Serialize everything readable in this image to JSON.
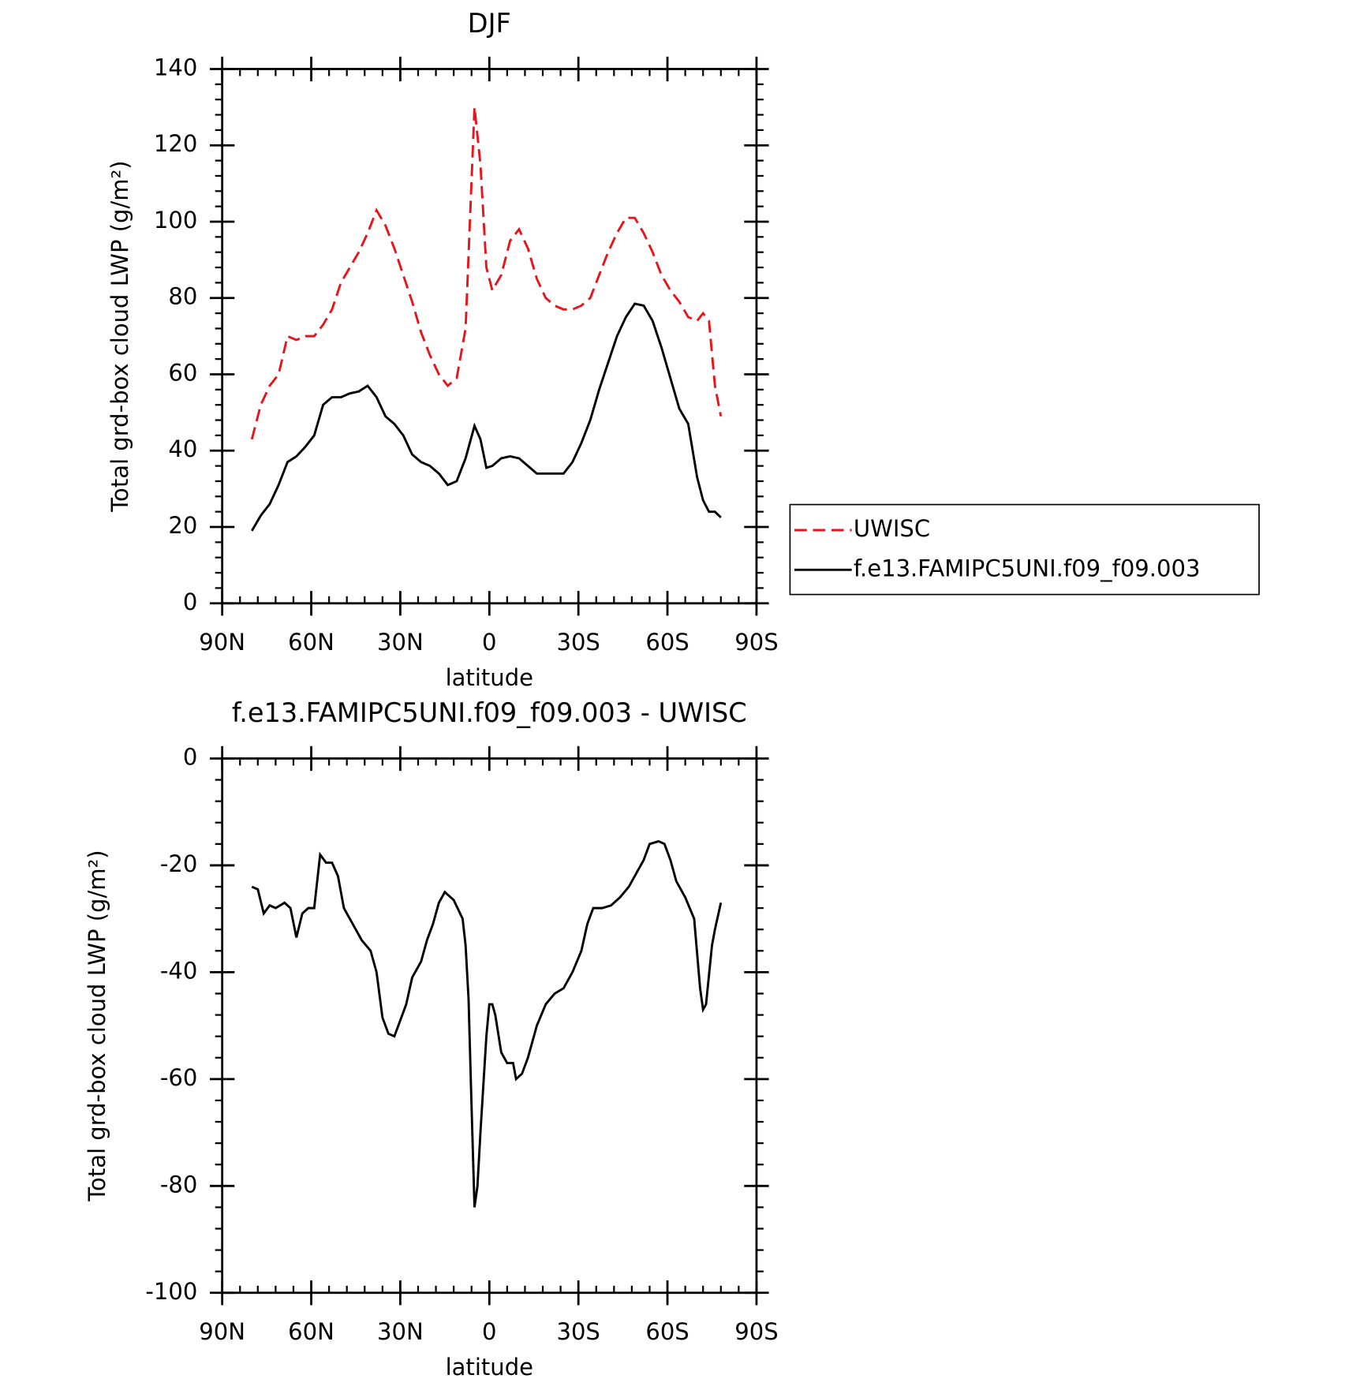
{
  "chart_data": [
    {
      "type": "line",
      "title": "DJF",
      "ylabel": "Total grd-box cloud LWP (g/m²)",
      "xlabel": "latitude",
      "xlim": [
        90,
        -90
      ],
      "xticks": [
        {
          "value": 90,
          "label": "90N"
        },
        {
          "value": 60,
          "label": "60N"
        },
        {
          "value": 30,
          "label": "30N"
        },
        0,
        {
          "value": -30,
          "label": "30S"
        },
        {
          "value": -60,
          "label": "60S"
        },
        {
          "value": -90,
          "label": "90S"
        }
      ],
      "ylim": [
        0,
        140
      ],
      "yticks": [
        0,
        20,
        40,
        60,
        80,
        100,
        120,
        140
      ],
      "legend": "right",
      "x": [
        80,
        77,
        74,
        71,
        68,
        65,
        62,
        59,
        56,
        53,
        50,
        47,
        44,
        41,
        38,
        35,
        32,
        29,
        26,
        23,
        20,
        17,
        14,
        11,
        8,
        5,
        3,
        1,
        -1,
        -4,
        -7,
        -10,
        -13,
        -16,
        -19,
        -22,
        -25,
        -28,
        -31,
        -34,
        -37,
        -40,
        -43,
        -46,
        -49,
        -52,
        -55,
        -58,
        -61,
        -64,
        -67,
        -70,
        -72,
        -74,
        -76,
        -78
      ],
      "series": [
        {
          "name": "UWISC",
          "color": "#e8141b",
          "line_style": "dashed",
          "values": [
            43,
            52,
            57,
            60,
            70,
            69,
            70,
            70,
            73,
            77,
            84,
            88,
            92,
            97,
            103,
            99,
            93,
            86,
            79,
            71,
            65,
            60,
            57,
            59,
            72,
            130,
            115,
            88,
            82,
            86,
            95,
            98,
            93,
            85,
            80,
            78,
            77,
            77,
            78,
            80,
            86,
            92,
            97,
            101,
            101,
            97,
            92,
            86,
            82,
            79,
            75,
            74,
            76,
            74,
            57,
            49
          ]
        },
        {
          "name": "f.e13.FAMIPC5UNI.f09_f09.003",
          "color": "#000000",
          "line_style": "solid",
          "values": [
            19,
            23,
            26,
            31,
            37,
            38.5,
            41,
            44,
            52,
            54,
            54,
            55,
            55.5,
            57,
            54,
            49,
            47,
            44,
            39,
            37,
            36,
            34,
            31,
            32,
            38,
            46.5,
            43,
            35.5,
            36,
            38,
            38.5,
            38,
            36,
            34,
            34,
            34,
            34,
            37,
            42,
            48,
            56,
            63,
            70,
            75,
            78.5,
            78,
            74,
            67,
            59,
            51,
            47,
            33,
            27,
            24,
            24,
            22.5
          ]
        }
      ]
    },
    {
      "type": "line",
      "title": "f.e13.FAMIPC5UNI.f09_f09.003 - UWISC",
      "ylabel": "Total grd-box cloud LWP (g/m²)",
      "xlabel": "latitude",
      "xlim": [
        90,
        -90
      ],
      "xticks": [
        {
          "value": 90,
          "label": "90N"
        },
        {
          "value": 60,
          "label": "60N"
        },
        {
          "value": 30,
          "label": "30N"
        },
        0,
        {
          "value": -30,
          "label": "30S"
        },
        {
          "value": -60,
          "label": "60S"
        },
        {
          "value": -90,
          "label": "90S"
        }
      ],
      "ylim": [
        -100,
        0
      ],
      "yticks": [
        -100,
        -80,
        -60,
        -40,
        -20,
        0
      ],
      "color": "#000000",
      "line_style": "solid",
      "x": [
        80,
        78,
        76,
        74,
        72,
        69,
        67,
        65,
        63,
        61,
        59,
        57,
        55,
        53,
        51,
        49,
        46,
        43,
        40,
        38,
        36,
        34,
        32,
        30,
        28,
        26,
        23,
        21,
        19,
        17,
        15,
        13,
        12,
        9,
        8,
        7,
        6,
        5,
        4,
        3,
        1,
        0,
        -1,
        -2,
        -4,
        -6,
        -8,
        -9,
        -11,
        -13,
        -16,
        -19,
        -22,
        -25,
        -28,
        -31,
        -33,
        -35,
        -38,
        -41,
        -44,
        -47,
        -50,
        -52,
        -54,
        -57,
        -59,
        -61,
        -63,
        -66,
        -69,
        -71,
        -72,
        -73,
        -75,
        -76,
        -78
      ],
      "values": [
        -24,
        -24.5,
        -29,
        -27.5,
        -28,
        -27,
        -28,
        -33.5,
        -29,
        -28,
        -28,
        -18,
        -19.5,
        -19.5,
        -22,
        -28,
        -31,
        -34,
        -36,
        -40,
        -48.5,
        -51.5,
        -52,
        -49,
        -46,
        -41,
        -38,
        -34,
        -31,
        -27,
        -25,
        -26,
        -26.5,
        -30,
        -35,
        -45,
        -65,
        -84,
        -80,
        -70,
        -52,
        -46,
        -46,
        -48,
        -55,
        -57,
        -57,
        -60,
        -59,
        -56,
        -50,
        -46,
        -44,
        -43,
        -40,
        -36,
        -31,
        -28,
        -28,
        -27.5,
        -26,
        -24,
        -21,
        -19,
        -16,
        -15.5,
        -16,
        -19,
        -23,
        -26,
        -30,
        -43,
        -47,
        -46,
        -35,
        -32,
        -27
      ]
    }
  ]
}
